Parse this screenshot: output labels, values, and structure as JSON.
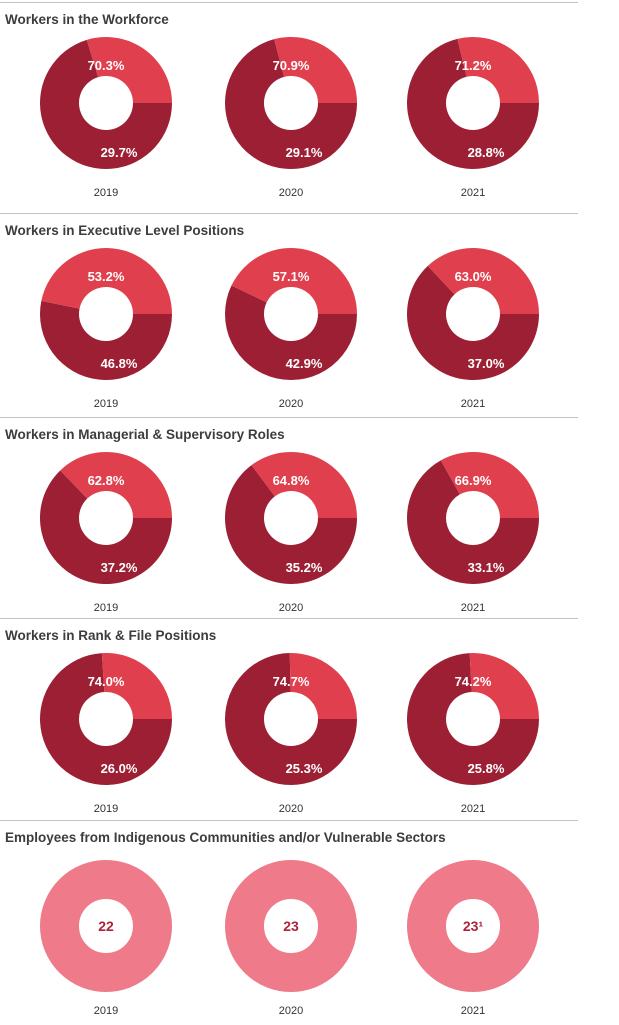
{
  "colors": {
    "dark": "#9d1f34",
    "light": "#e0404d",
    "pink": "#ee7a8a",
    "label_light": "#ffffff",
    "label_count": "#b0213a"
  },
  "chart_data": [
    {
      "type": "pie",
      "title": "Workers in the Workforce",
      "categories": [
        "2019",
        "2020",
        "2021"
      ],
      "donuts": [
        {
          "year": "2019",
          "slices": [
            {
              "value": 70.3,
              "label": "70.3%"
            },
            {
              "value": 29.7,
              "label": "29.7%"
            }
          ]
        },
        {
          "year": "2020",
          "slices": [
            {
              "value": 70.9,
              "label": "70.9%"
            },
            {
              "value": 29.1,
              "label": "29.1%"
            }
          ]
        },
        {
          "year": "2021",
          "slices": [
            {
              "value": 71.2,
              "label": "71.2%"
            },
            {
              "value": 28.8,
              "label": "28.8%"
            }
          ]
        }
      ]
    },
    {
      "type": "pie",
      "title": "Workers in Executive Level Positions",
      "categories": [
        "2019",
        "2020",
        "2021"
      ],
      "donuts": [
        {
          "year": "2019",
          "slices": [
            {
              "value": 53.2,
              "label": "53.2%"
            },
            {
              "value": 46.8,
              "label": "46.8%"
            }
          ]
        },
        {
          "year": "2020",
          "slices": [
            {
              "value": 57.1,
              "label": "57.1%"
            },
            {
              "value": 42.9,
              "label": "42.9%"
            }
          ]
        },
        {
          "year": "2021",
          "slices": [
            {
              "value": 63.0,
              "label": "63.0%"
            },
            {
              "value": 37.0,
              "label": "37.0%"
            }
          ]
        }
      ]
    },
    {
      "type": "pie",
      "title": "Workers in Managerial & Supervisory Roles",
      "categories": [
        "2019",
        "2020",
        "2021"
      ],
      "donuts": [
        {
          "year": "2019",
          "slices": [
            {
              "value": 62.8,
              "label": "62.8%"
            },
            {
              "value": 37.2,
              "label": "37.2%"
            }
          ]
        },
        {
          "year": "2020",
          "slices": [
            {
              "value": 64.8,
              "label": "64.8%"
            },
            {
              "value": 35.2,
              "label": "35.2%"
            }
          ]
        },
        {
          "year": "2021",
          "slices": [
            {
              "value": 66.9,
              "label": "66.9%"
            },
            {
              "value": 33.1,
              "label": "33.1%"
            }
          ]
        }
      ]
    },
    {
      "type": "pie",
      "title": "Workers in Rank & File Positions",
      "categories": [
        "2019",
        "2020",
        "2021"
      ],
      "donuts": [
        {
          "year": "2019",
          "slices": [
            {
              "value": 74.0,
              "label": "74.0%"
            },
            {
              "value": 26.0,
              "label": "26.0%"
            }
          ]
        },
        {
          "year": "2020",
          "slices": [
            {
              "value": 74.7,
              "label": "74.7%"
            },
            {
              "value": 25.3,
              "label": "25.3%"
            }
          ]
        },
        {
          "year": "2021",
          "slices": [
            {
              "value": 74.2,
              "label": "74.2%"
            },
            {
              "value": 25.8,
              "label": "25.8%"
            }
          ]
        }
      ]
    },
    {
      "type": "pie",
      "title": "Employees from Indigenous Communities and/or Vulnerable Sectors",
      "categories": [
        "2019",
        "2020",
        "2021"
      ],
      "donuts": [
        {
          "year": "2019",
          "count": "22"
        },
        {
          "year": "2020",
          "count": "23"
        },
        {
          "year": "2021",
          "count": "23¹"
        }
      ]
    }
  ]
}
